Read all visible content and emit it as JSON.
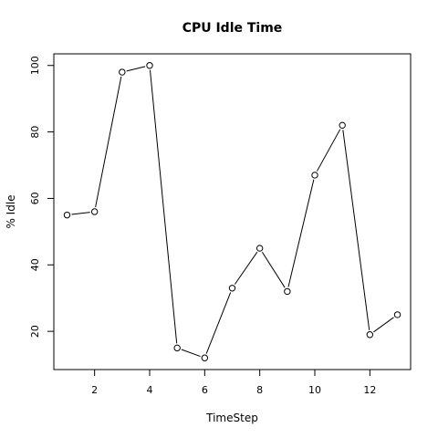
{
  "chart_data": {
    "type": "line",
    "title": "CPU Idle Time",
    "xlabel": "TimeStep",
    "ylabel": "% Idle",
    "x": [
      1,
      2,
      3,
      4,
      5,
      6,
      7,
      8,
      9,
      10,
      11,
      12,
      13
    ],
    "series": [
      {
        "values": [
          55,
          56,
          98,
          100,
          15,
          12,
          33,
          45,
          32,
          67,
          82,
          19,
          25
        ]
      }
    ],
    "xlim": [
      0.52,
      13.48
    ],
    "ylim": [
      8.5,
      103.5
    ],
    "x_ticks": [
      2,
      4,
      6,
      8,
      10,
      12
    ],
    "y_ticks": [
      20,
      40,
      60,
      80,
      100
    ],
    "grid": false,
    "marker": "open-circle",
    "colors": {
      "line": "#000000",
      "marker": "#000000",
      "background": "#ffffff"
    }
  }
}
